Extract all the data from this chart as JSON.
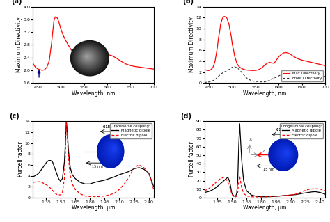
{
  "fig_bg": "#ffffff",
  "panel_a": {
    "xlim": [
      440,
      700
    ],
    "ylim": [
      1.6,
      4.0
    ],
    "xlabel": "Wavelength, nm",
    "ylabel": "Maximum Directivity",
    "yticks": [
      1.6,
      2.0,
      2.4,
      2.8,
      3.2,
      3.6,
      4.0
    ],
    "xticks": [
      450,
      500,
      550,
      600,
      650,
      700
    ],
    "label": "(a)"
  },
  "panel_b": {
    "xlim": [
      440,
      700
    ],
    "ylim": [
      0,
      14
    ],
    "xlabel": "Wavelength, nm",
    "ylabel": "Maximum Directivity",
    "yticks": [
      0,
      2,
      4,
      6,
      8,
      10,
      12,
      14
    ],
    "xticks": [
      450,
      500,
      550,
      600,
      650,
      700
    ],
    "label": "(b)"
  },
  "panel_c": {
    "xlim": [
      1.22,
      2.45
    ],
    "ylim": [
      0,
      14
    ],
    "xlabel": "Wavelength, μm",
    "ylabel": "Purcell factor",
    "yticks": [
      0,
      2,
      4,
      6,
      8,
      10,
      12,
      14
    ],
    "xticks": [
      1.35,
      1.5,
      1.65,
      1.8,
      1.95,
      2.1,
      2.25,
      2.4
    ],
    "label": "(c)"
  },
  "panel_d": {
    "xlim": [
      1.22,
      2.45
    ],
    "ylim": [
      0,
      90
    ],
    "xlabel": "Wavelength, μm",
    "ylabel": "Purcell factor",
    "yticks": [
      0,
      10,
      20,
      30,
      40,
      50,
      60,
      70,
      80,
      90
    ],
    "xticks": [
      1.35,
      1.5,
      1.65,
      1.8,
      1.95,
      2.1,
      2.25,
      2.4
    ],
    "label": "(d)"
  }
}
